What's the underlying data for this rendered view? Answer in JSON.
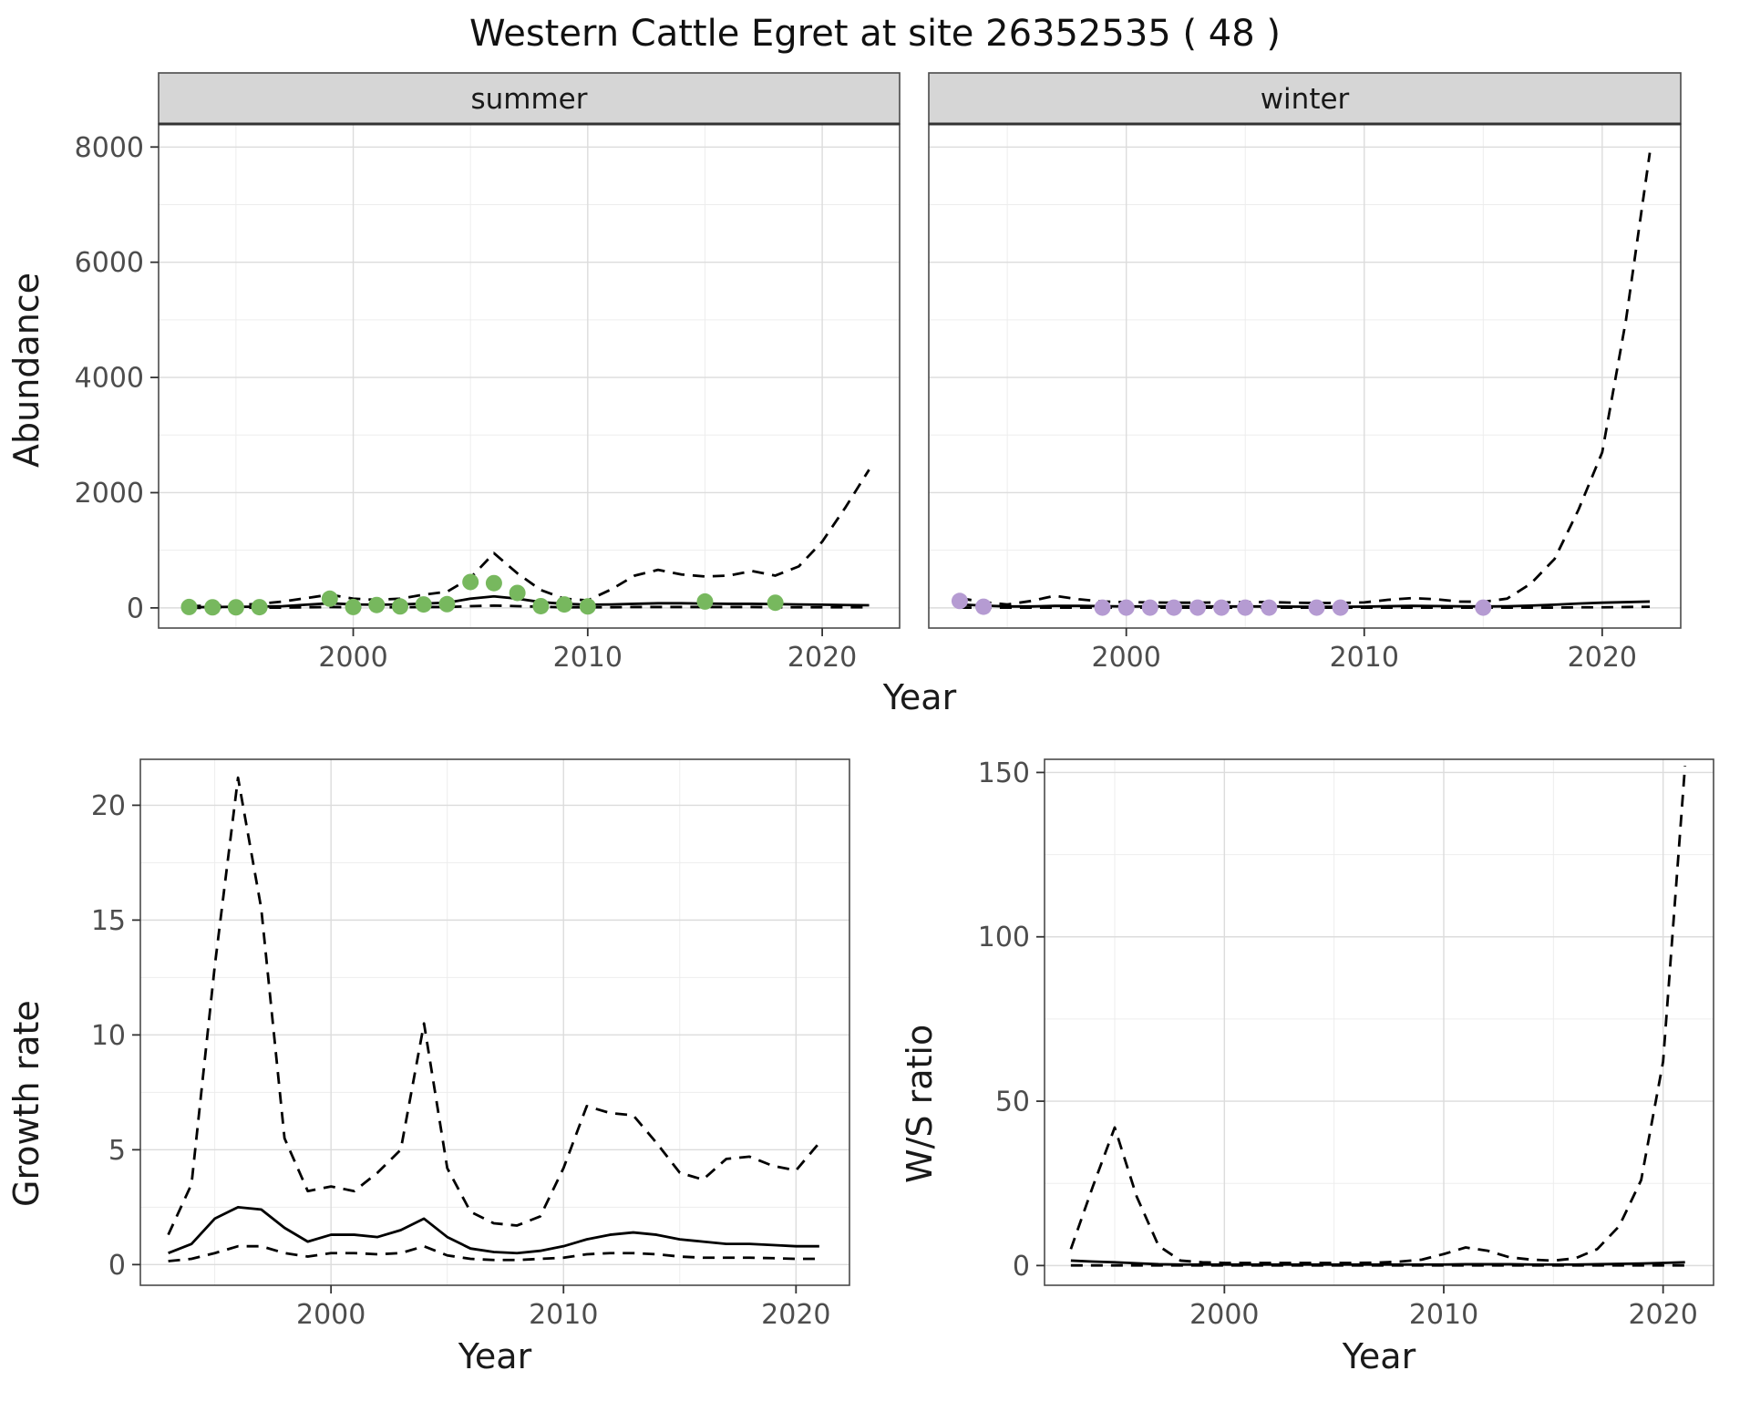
{
  "title": "Western Cattle Egret at site 26352535 ( 48 )",
  "labels": {
    "abundance": "Abundance",
    "year": "Year",
    "growth": "Growth rate",
    "ws": "W/S ratio"
  },
  "colors": {
    "summer_points": "#77b85e",
    "winter_points": "#b59bd2",
    "line": "#000000",
    "strip_fill": "#d6d6d6",
    "grid_major": "#dcdcdc",
    "grid_minor": "#ededed"
  },
  "chart_data": [
    {
      "id": "summer_abundance",
      "type": "line",
      "facet": "summer",
      "title": "",
      "xlabel": "Year",
      "ylabel": "Abundance",
      "xlim": [
        1991.7,
        2023.3
      ],
      "ylim": [
        -350,
        8400
      ],
      "xticks": [
        2000,
        2010,
        2020
      ],
      "yticks": [
        0,
        2000,
        4000,
        6000,
        8000
      ],
      "series": [
        {
          "name": "upper_ci",
          "style": "dashed",
          "color": "#000000",
          "x": [
            1993,
            1994,
            1995,
            1996,
            1997,
            1998,
            1999,
            2000,
            2001,
            2002,
            2003,
            2004,
            2005,
            2006,
            2007,
            2008,
            2009,
            2010,
            2011,
            2012,
            2013,
            2014,
            2015,
            2016,
            2017,
            2018,
            2019,
            2020,
            2021,
            2022
          ],
          "y": [
            30,
            40,
            50,
            70,
            110,
            170,
            230,
            160,
            140,
            160,
            230,
            280,
            520,
            950,
            600,
            310,
            160,
            130,
            320,
            560,
            660,
            580,
            545,
            560,
            640,
            560,
            720,
            1150,
            1750,
            2400
          ]
        },
        {
          "name": "lower_ci",
          "style": "dashed",
          "color": "#000000",
          "x": [
            1993,
            1994,
            1995,
            1996,
            1997,
            1998,
            1999,
            2000,
            2001,
            2002,
            2003,
            2004,
            2005,
            2006,
            2007,
            2008,
            2009,
            2010,
            2011,
            2012,
            2013,
            2014,
            2015,
            2016,
            2017,
            2018,
            2019,
            2020,
            2021,
            2022
          ],
          "y": [
            0,
            0,
            0,
            5,
            5,
            10,
            15,
            10,
            10,
            10,
            15,
            15,
            30,
            40,
            30,
            20,
            10,
            10,
            10,
            15,
            15,
            15,
            15,
            15,
            15,
            10,
            10,
            10,
            10,
            10
          ]
        },
        {
          "name": "median_fit",
          "style": "solid",
          "color": "#000000",
          "x": [
            1993,
            1994,
            1995,
            1996,
            1997,
            1998,
            1999,
            2000,
            2001,
            2002,
            2003,
            2004,
            2005,
            2006,
            2007,
            2008,
            2009,
            2010,
            2011,
            2012,
            2013,
            2014,
            2015,
            2016,
            2017,
            2018,
            2019,
            2020,
            2021,
            2022
          ],
          "y": [
            10,
            15,
            18,
            22,
            30,
            55,
            80,
            60,
            55,
            60,
            75,
            90,
            160,
            200,
            160,
            100,
            70,
            55,
            60,
            70,
            80,
            80,
            75,
            70,
            70,
            65,
            60,
            55,
            50,
            45
          ]
        },
        {
          "name": "observed_counts",
          "style": "points",
          "color": "#77b85e",
          "x": [
            1993,
            1994,
            1995,
            1996,
            1999,
            2000,
            2001,
            2002,
            2003,
            2004,
            2005,
            2006,
            2007,
            2008,
            2009,
            2010,
            2015,
            2018
          ],
          "y": [
            15,
            10,
            10,
            12,
            160,
            15,
            50,
            25,
            60,
            65,
            450,
            430,
            260,
            30,
            60,
            25,
            110,
            90
          ]
        }
      ]
    },
    {
      "id": "winter_abundance",
      "type": "line",
      "facet": "winter",
      "title": "",
      "xlabel": "Year",
      "ylabel": "Abundance",
      "xlim": [
        1991.7,
        2023.3
      ],
      "ylim": [
        -350,
        8400
      ],
      "xticks": [
        2000,
        2010,
        2020
      ],
      "yticks": [
        0,
        2000,
        4000,
        6000,
        8000
      ],
      "series": [
        {
          "name": "upper_ci",
          "style": "dashed",
          "color": "#000000",
          "x": [
            1993,
            1994,
            1995,
            1996,
            1997,
            1998,
            1999,
            2000,
            2001,
            2002,
            2003,
            2004,
            2005,
            2006,
            2007,
            2008,
            2009,
            2010,
            2011,
            2012,
            2013,
            2014,
            2015,
            2016,
            2017,
            2018,
            2019,
            2020,
            2021,
            2022
          ],
          "y": [
            170,
            100,
            60,
            120,
            210,
            150,
            110,
            100,
            95,
            90,
            90,
            95,
            100,
            100,
            90,
            85,
            85,
            95,
            140,
            170,
            150,
            110,
            105,
            160,
            420,
            850,
            1700,
            2700,
            5000,
            7900
          ]
        },
        {
          "name": "lower_ci",
          "style": "dashed",
          "color": "#000000",
          "x": [
            1993,
            1994,
            1995,
            1996,
            1997,
            1998,
            1999,
            2000,
            2001,
            2002,
            2003,
            2004,
            2005,
            2006,
            2007,
            2008,
            2009,
            2010,
            2011,
            2012,
            2013,
            2014,
            2015,
            2016,
            2017,
            2018,
            2019,
            2020,
            2021,
            2022
          ],
          "y": [
            5,
            5,
            5,
            5,
            5,
            5,
            5,
            5,
            5,
            5,
            5,
            5,
            5,
            5,
            5,
            5,
            5,
            5,
            5,
            5,
            5,
            5,
            5,
            5,
            5,
            5,
            10,
            10,
            15,
            20
          ]
        },
        {
          "name": "median_fit",
          "style": "solid",
          "color": "#000000",
          "x": [
            1993,
            1994,
            1995,
            1996,
            1997,
            1998,
            1999,
            2000,
            2001,
            2002,
            2003,
            2004,
            2005,
            2006,
            2007,
            2008,
            2009,
            2010,
            2011,
            2012,
            2013,
            2014,
            2015,
            2016,
            2017,
            2018,
            2019,
            2020,
            2021,
            2022
          ],
          "y": [
            60,
            40,
            25,
            25,
            35,
            35,
            30,
            25,
            25,
            25,
            25,
            25,
            25,
            25,
            22,
            20,
            20,
            22,
            30,
            35,
            32,
            28,
            25,
            28,
            40,
            55,
            75,
            90,
            100,
            110
          ]
        },
        {
          "name": "observed_counts",
          "style": "points",
          "color": "#b59bd2",
          "x": [
            1993,
            1994,
            1999,
            2000,
            2001,
            2002,
            2003,
            2004,
            2005,
            2006,
            2008,
            2009,
            2015
          ],
          "y": [
            120,
            20,
            5,
            5,
            5,
            5,
            5,
            5,
            5,
            5,
            5,
            5,
            5
          ]
        }
      ]
    },
    {
      "id": "growth_rate",
      "type": "line",
      "facet": "",
      "title": "",
      "xlabel": "Year",
      "ylabel": "Growth rate",
      "xlim": [
        1991.8,
        2022.3
      ],
      "ylim": [
        -0.9,
        22.0
      ],
      "xticks": [
        2000,
        2010,
        2020
      ],
      "yticks": [
        0,
        5,
        10,
        15,
        20
      ],
      "series": [
        {
          "name": "upper_ci",
          "style": "dashed",
          "color": "#000000",
          "x": [
            1993,
            1994,
            1995,
            1996,
            1997,
            1998,
            1999,
            2000,
            2001,
            2002,
            2003,
            2004,
            2005,
            2006,
            2007,
            2008,
            2009,
            2010,
            2011,
            2012,
            2013,
            2014,
            2015,
            2016,
            2017,
            2018,
            2019,
            2020,
            2021
          ],
          "y": [
            1.3,
            3.5,
            13,
            21.2,
            15.5,
            5.5,
            3.2,
            3.4,
            3.2,
            4,
            5,
            10.5,
            4.2,
            2.3,
            1.8,
            1.7,
            2.1,
            4.2,
            6.9,
            6.6,
            6.5,
            5.3,
            4,
            3.7,
            4.6,
            4.7,
            4.3,
            4.1,
            5.3
          ]
        },
        {
          "name": "lower_ci",
          "style": "dashed",
          "color": "#000000",
          "x": [
            1993,
            1994,
            1995,
            1996,
            1997,
            1998,
            1999,
            2000,
            2001,
            2002,
            2003,
            2004,
            2005,
            2006,
            2007,
            2008,
            2009,
            2010,
            2011,
            2012,
            2013,
            2014,
            2015,
            2016,
            2017,
            2018,
            2019,
            2020,
            2021
          ],
          "y": [
            0.15,
            0.25,
            0.5,
            0.8,
            0.8,
            0.5,
            0.35,
            0.5,
            0.5,
            0.45,
            0.5,
            0.8,
            0.4,
            0.25,
            0.2,
            0.2,
            0.25,
            0.3,
            0.45,
            0.5,
            0.5,
            0.45,
            0.35,
            0.3,
            0.3,
            0.3,
            0.28,
            0.25,
            0.25
          ]
        },
        {
          "name": "median_fit",
          "style": "solid",
          "color": "#000000",
          "x": [
            1993,
            1994,
            1995,
            1996,
            1997,
            1998,
            1999,
            2000,
            2001,
            2002,
            2003,
            2004,
            2005,
            2006,
            2007,
            2008,
            2009,
            2010,
            2011,
            2012,
            2013,
            2014,
            2015,
            2016,
            2017,
            2018,
            2019,
            2020,
            2021
          ],
          "y": [
            0.5,
            0.9,
            2,
            2.5,
            2.4,
            1.6,
            1,
            1.3,
            1.3,
            1.2,
            1.5,
            2,
            1.2,
            0.7,
            0.55,
            0.5,
            0.6,
            0.8,
            1.1,
            1.3,
            1.4,
            1.3,
            1.1,
            1,
            0.9,
            0.9,
            0.85,
            0.8,
            0.8
          ]
        }
      ]
    },
    {
      "id": "ws_ratio",
      "type": "line",
      "facet": "",
      "title": "",
      "xlabel": "Year",
      "ylabel": "W/S ratio",
      "xlim": [
        1991.8,
        2022.3
      ],
      "ylim": [
        -6,
        154
      ],
      "xticks": [
        2000,
        2010,
        2020
      ],
      "yticks": [
        0,
        50,
        100,
        150
      ],
      "series": [
        {
          "name": "upper_ci",
          "style": "dashed",
          "color": "#000000",
          "x": [
            1993,
            1994,
            1995,
            1996,
            1997,
            1998,
            1999,
            2000,
            2001,
            2002,
            2003,
            2004,
            2005,
            2006,
            2007,
            2008,
            2009,
            2010,
            2011,
            2012,
            2013,
            2014,
            2015,
            2016,
            2017,
            2018,
            2019,
            2020,
            2021
          ],
          "y": [
            5,
            24,
            42,
            21,
            6,
            1.5,
            1,
            0.8,
            0.8,
            0.8,
            0.8,
            0.8,
            0.8,
            0.8,
            0.9,
            1.2,
            1.8,
            3.5,
            5.5,
            4.5,
            2.5,
            1.8,
            1.5,
            2.2,
            5,
            12,
            26,
            62,
            152
          ]
        },
        {
          "name": "lower_ci",
          "style": "dashed",
          "color": "#000000",
          "x": [
            1993,
            1994,
            1995,
            1996,
            1997,
            1998,
            1999,
            2000,
            2001,
            2002,
            2003,
            2004,
            2005,
            2006,
            2007,
            2008,
            2009,
            2010,
            2011,
            2012,
            2013,
            2014,
            2015,
            2016,
            2017,
            2018,
            2019,
            2020,
            2021
          ],
          "y": [
            0.05,
            0.05,
            0.05,
            0.05,
            0.05,
            0.05,
            0.05,
            0.05,
            0.05,
            0.05,
            0.05,
            0.05,
            0.05,
            0.05,
            0.05,
            0.05,
            0.05,
            0.05,
            0.05,
            0.05,
            0.05,
            0.05,
            0.05,
            0.05,
            0.05,
            0.05,
            0.05,
            0.05,
            0.05
          ]
        },
        {
          "name": "median_fit",
          "style": "solid",
          "color": "#000000",
          "x": [
            1993,
            1994,
            1995,
            1996,
            1997,
            1998,
            1999,
            2000,
            2001,
            2002,
            2003,
            2004,
            2005,
            2006,
            2007,
            2008,
            2009,
            2010,
            2011,
            2012,
            2013,
            2014,
            2015,
            2016,
            2017,
            2018,
            2019,
            2020,
            2021
          ],
          "y": [
            1.5,
            1.2,
            1,
            0.7,
            0.4,
            0.3,
            0.3,
            0.3,
            0.3,
            0.3,
            0.3,
            0.3,
            0.3,
            0.3,
            0.3,
            0.3,
            0.3,
            0.3,
            0.4,
            0.4,
            0.4,
            0.3,
            0.3,
            0.3,
            0.4,
            0.5,
            0.6,
            0.8,
            1
          ]
        }
      ]
    }
  ]
}
